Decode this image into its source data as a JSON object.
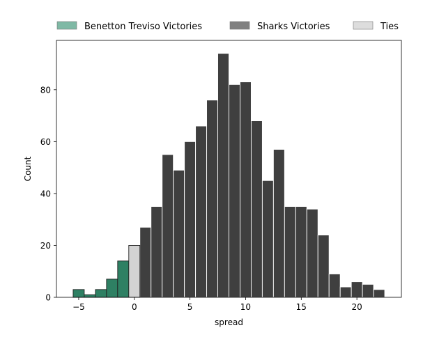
{
  "chart_data": {
    "type": "bar",
    "xlabel": "spread",
    "ylabel": "Count",
    "xlim": [
      -7,
      24
    ],
    "ylim": [
      0,
      99
    ],
    "x_ticks": [
      -5,
      0,
      5,
      10,
      15,
      20
    ],
    "y_ticks": [
      0,
      20,
      40,
      60,
      80
    ],
    "bin_width": 1,
    "legend_position": "top-center-outside",
    "grid": false,
    "series": [
      {
        "name": "Benetton Treviso Victories",
        "color": "#2e8063",
        "legend_color": "#7fb9a5",
        "bins": [
          {
            "x": -5,
            "count": 3
          },
          {
            "x": -4,
            "count": 1
          },
          {
            "x": -3,
            "count": 3
          },
          {
            "x": -2,
            "count": 7
          },
          {
            "x": -1,
            "count": 14
          }
        ]
      },
      {
        "name": "Sharks Victories",
        "color": "#3f3f3f",
        "legend_color": "#808080",
        "bins": [
          {
            "x": 1,
            "count": 27
          },
          {
            "x": 2,
            "count": 35
          },
          {
            "x": 3,
            "count": 55
          },
          {
            "x": 4,
            "count": 49
          },
          {
            "x": 5,
            "count": 60
          },
          {
            "x": 6,
            "count": 66
          },
          {
            "x": 7,
            "count": 76
          },
          {
            "x": 8,
            "count": 94
          },
          {
            "x": 9,
            "count": 82
          },
          {
            "x": 10,
            "count": 83
          },
          {
            "x": 11,
            "count": 68
          },
          {
            "x": 12,
            "count": 45
          },
          {
            "x": 13,
            "count": 57
          },
          {
            "x": 14,
            "count": 35
          },
          {
            "x": 15,
            "count": 35
          },
          {
            "x": 16,
            "count": 34
          },
          {
            "x": 17,
            "count": 24
          },
          {
            "x": 18,
            "count": 9
          },
          {
            "x": 19,
            "count": 4
          },
          {
            "x": 20,
            "count": 6
          },
          {
            "x": 21,
            "count": 5
          },
          {
            "x": 22,
            "count": 3
          }
        ]
      },
      {
        "name": "Ties",
        "color": "#d3d3d3",
        "legend_color": "#dddddd",
        "bins": [
          {
            "x": 0,
            "count": 20
          }
        ]
      }
    ]
  }
}
